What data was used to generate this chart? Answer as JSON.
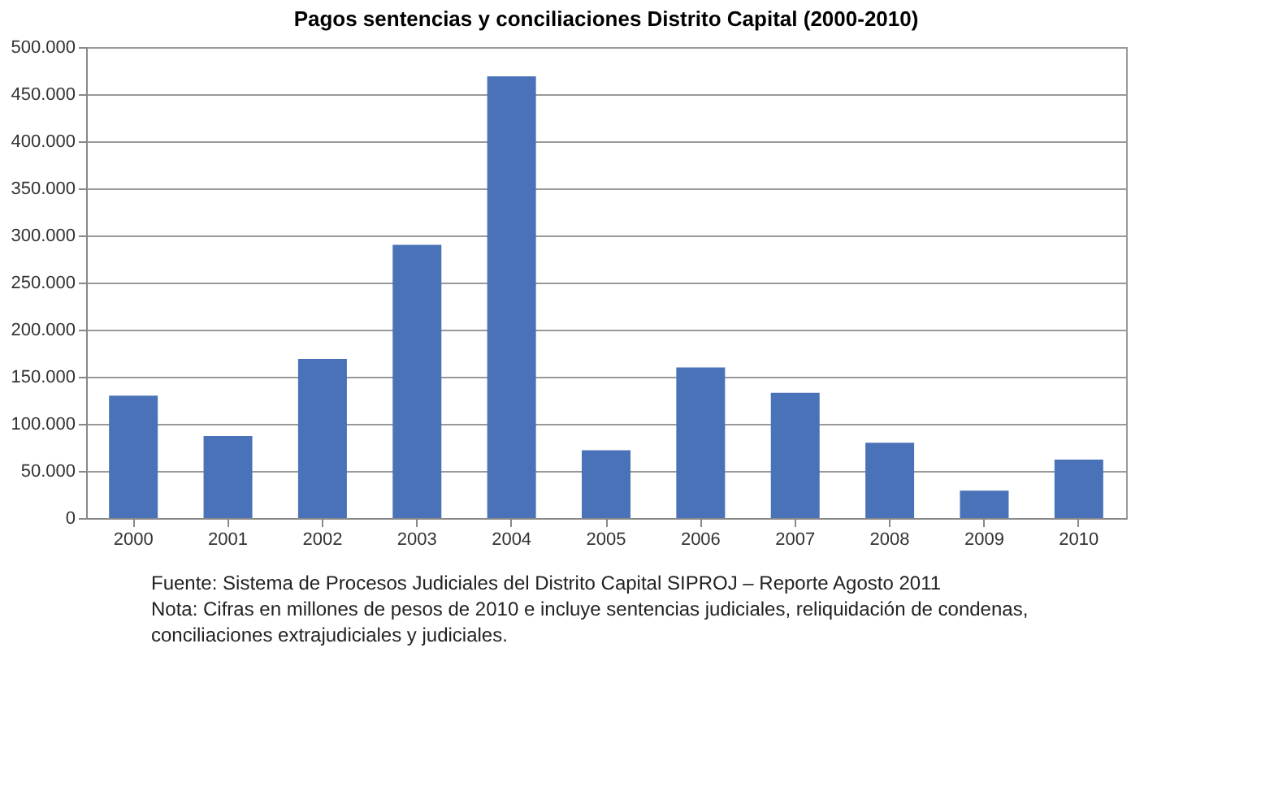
{
  "chart_data": {
    "type": "bar",
    "title": "Pagos sentencias y conciliaciones Distrito Capital (2000-2010)",
    "categories": [
      "2000",
      "2001",
      "2002",
      "2003",
      "2004",
      "2005",
      "2006",
      "2007",
      "2008",
      "2009",
      "2010"
    ],
    "values": [
      130000,
      87000,
      169000,
      290000,
      469000,
      72000,
      160000,
      133000,
      80000,
      29000,
      62000
    ],
    "color": "#4a72b8",
    "ylim": [
      0,
      500000
    ],
    "yticks": [
      {
        "value": 0,
        "label": "0"
      },
      {
        "value": 50000,
        "label": "50.000"
      },
      {
        "value": 100000,
        "label": "100.000"
      },
      {
        "value": 150000,
        "label": "150.000"
      },
      {
        "value": 200000,
        "label": "200.000"
      },
      {
        "value": 250000,
        "label": "250.000"
      },
      {
        "value": 300000,
        "label": "300.000"
      },
      {
        "value": 350000,
        "label": "350.000"
      },
      {
        "value": 400000,
        "label": "400.000"
      },
      {
        "value": 450000,
        "label": "450.000"
      },
      {
        "value": 500000,
        "label": "500.000"
      }
    ],
    "grid": "y",
    "annotations": [
      "Fuente: Sistema de Procesos Judiciales del Distrito Capital SIPROJ – Reporte Agosto 2011",
      "Nota: Cifras en millones de pesos de 2010 e incluye sentencias judiciales, reliquidación de condenas, conciliaciones extrajudiciales y judiciales."
    ]
  }
}
